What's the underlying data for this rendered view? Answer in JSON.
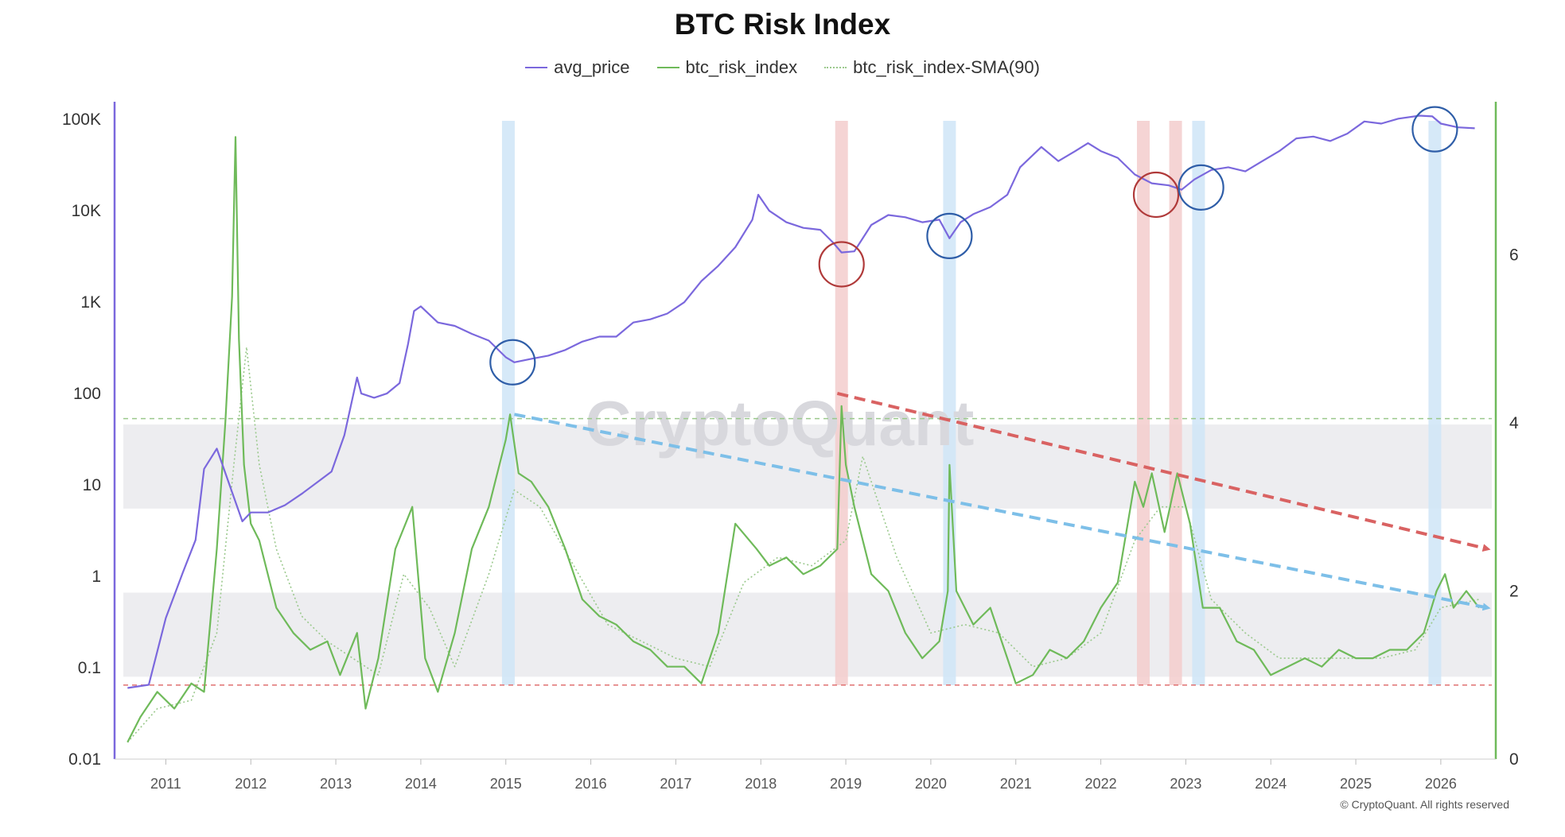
{
  "chart_data": {
    "type": "line",
    "title": "BTC Risk Index",
    "legend_position": "top-center",
    "grid": false,
    "x_range": [
      2010.5,
      2026.6
    ],
    "x_ticks": [
      "2011",
      "2012",
      "2013",
      "2014",
      "2015",
      "2016",
      "2017",
      "2018",
      "2019",
      "2020",
      "2021",
      "2022",
      "2023",
      "2024",
      "2025",
      "2026"
    ],
    "y_left": {
      "scale": "log",
      "range": [
        0.01,
        150000
      ],
      "ticks": [
        {
          "value": 0.01,
          "label": "0.01"
        },
        {
          "value": 0.1,
          "label": "0.1"
        },
        {
          "value": 1,
          "label": "1"
        },
        {
          "value": 10,
          "label": "10"
        },
        {
          "value": 100,
          "label": "100"
        },
        {
          "value": 1000,
          "label": "1K"
        },
        {
          "value": 10000,
          "label": "10K"
        },
        {
          "value": 100000,
          "label": "100K"
        }
      ]
    },
    "y_right": {
      "scale": "linear",
      "range": [
        0,
        7.8
      ],
      "ticks": [
        {
          "value": 0,
          "label": "0"
        },
        {
          "value": 2,
          "label": "2"
        },
        {
          "value": 4,
          "label": "4"
        },
        {
          "value": 6,
          "label": "6"
        }
      ]
    },
    "series": [
      {
        "name": "avg_price",
        "axis": "left",
        "color": "#7b68dd",
        "style": "solid",
        "x": [
          2010.55,
          2010.8,
          2011.0,
          2011.2,
          2011.35,
          2011.45,
          2011.6,
          2011.75,
          2011.9,
          2012.0,
          2012.2,
          2012.4,
          2012.6,
          2012.8,
          2012.95,
          2013.1,
          2013.25,
          2013.3,
          2013.45,
          2013.6,
          2013.75,
          2013.85,
          2013.92,
          2014.0,
          2014.2,
          2014.4,
          2014.6,
          2014.8,
          2015.0,
          2015.1,
          2015.3,
          2015.5,
          2015.7,
          2015.9,
          2016.1,
          2016.3,
          2016.5,
          2016.7,
          2016.9,
          2017.1,
          2017.3,
          2017.5,
          2017.7,
          2017.9,
          2017.97,
          2018.1,
          2018.3,
          2018.5,
          2018.7,
          2018.85,
          2018.95,
          2019.1,
          2019.3,
          2019.5,
          2019.7,
          2019.9,
          2020.1,
          2020.22,
          2020.35,
          2020.5,
          2020.7,
          2020.9,
          2021.05,
          2021.3,
          2021.5,
          2021.7,
          2021.85,
          2022.0,
          2022.2,
          2022.4,
          2022.6,
          2022.8,
          2022.95,
          2023.1,
          2023.3,
          2023.5,
          2023.7,
          2023.9,
          2024.1,
          2024.3,
          2024.5,
          2024.7,
          2024.9,
          2025.1,
          2025.3,
          2025.5,
          2025.75,
          2025.9,
          2026.0,
          2026.2,
          2026.4
        ],
        "y": [
          0.06,
          0.065,
          0.35,
          1.1,
          2.5,
          15,
          25,
          10,
          4,
          5,
          5,
          6,
          8,
          11,
          14,
          35,
          150,
          100,
          90,
          100,
          130,
          350,
          800,
          900,
          600,
          550,
          450,
          380,
          250,
          220,
          240,
          260,
          300,
          370,
          420,
          420,
          600,
          650,
          750,
          1000,
          1700,
          2500,
          4000,
          8000,
          15000,
          10000,
          7500,
          6500,
          6200,
          4500,
          3500,
          3600,
          7000,
          9000,
          8500,
          7500,
          8000,
          5000,
          7500,
          9200,
          11000,
          15000,
          30000,
          50000,
          35000,
          45000,
          55000,
          45000,
          38000,
          25000,
          20000,
          19000,
          17000,
          22000,
          28000,
          30000,
          27000,
          35000,
          45000,
          62000,
          65000,
          58000,
          70000,
          95000,
          90000,
          102000,
          110000,
          108000,
          90000,
          82000,
          80000
        ]
      },
      {
        "name": "btc_risk_index",
        "axis": "right",
        "color": "#6fba5a",
        "style": "solid",
        "x": [
          2010.55,
          2010.7,
          2010.9,
          2011.1,
          2011.3,
          2011.45,
          2011.6,
          2011.7,
          2011.78,
          2011.82,
          2011.86,
          2011.92,
          2012.0,
          2012.1,
          2012.3,
          2012.5,
          2012.7,
          2012.9,
          2013.05,
          2013.25,
          2013.35,
          2013.5,
          2013.7,
          2013.9,
          2014.05,
          2014.2,
          2014.4,
          2014.6,
          2014.8,
          2015.0,
          2015.05,
          2015.15,
          2015.3,
          2015.5,
          2015.7,
          2015.9,
          2016.1,
          2016.3,
          2016.5,
          2016.7,
          2016.9,
          2017.1,
          2017.3,
          2017.5,
          2017.7,
          2017.95,
          2018.1,
          2018.3,
          2018.5,
          2018.7,
          2018.9,
          2018.95,
          2019.0,
          2019.1,
          2019.3,
          2019.5,
          2019.7,
          2019.9,
          2020.1,
          2020.2,
          2020.22,
          2020.3,
          2020.5,
          2020.7,
          2020.9,
          2021.0,
          2021.2,
          2021.4,
          2021.6,
          2021.8,
          2022.0,
          2022.2,
          2022.4,
          2022.5,
          2022.6,
          2022.75,
          2022.9,
          2023.05,
          2023.2,
          2023.4,
          2023.6,
          2023.8,
          2024.0,
          2024.2,
          2024.4,
          2024.6,
          2024.8,
          2025.0,
          2025.2,
          2025.4,
          2025.6,
          2025.8,
          2025.95,
          2026.05,
          2026.15,
          2026.3,
          2026.45
        ],
        "y": [
          0.2,
          0.5,
          0.8,
          0.6,
          0.9,
          0.8,
          2.5,
          4.0,
          5.5,
          7.4,
          5.0,
          3.5,
          2.8,
          2.6,
          1.8,
          1.5,
          1.3,
          1.4,
          1.0,
          1.5,
          0.6,
          1.2,
          2.5,
          3.0,
          1.2,
          0.8,
          1.5,
          2.5,
          3.0,
          3.8,
          4.1,
          3.4,
          3.3,
          3.0,
          2.5,
          1.9,
          1.7,
          1.6,
          1.4,
          1.3,
          1.1,
          1.1,
          0.9,
          1.5,
          2.8,
          2.5,
          2.3,
          2.4,
          2.2,
          2.3,
          2.5,
          4.2,
          3.5,
          3.0,
          2.2,
          2.0,
          1.5,
          1.2,
          1.4,
          2.0,
          3.5,
          2.0,
          1.6,
          1.8,
          1.2,
          0.9,
          1.0,
          1.3,
          1.2,
          1.4,
          1.8,
          2.1,
          3.3,
          3.0,
          3.4,
          2.7,
          3.4,
          2.8,
          1.8,
          1.8,
          1.4,
          1.3,
          1.0,
          1.1,
          1.2,
          1.1,
          1.3,
          1.2,
          1.2,
          1.3,
          1.3,
          1.5,
          2.0,
          2.2,
          1.8,
          2.0,
          1.8
        ]
      },
      {
        "name": "btc_risk_index-SMA(90)",
        "axis": "right",
        "color": "#9bc98d",
        "style": "dotted",
        "x": [
          2010.55,
          2010.9,
          2011.3,
          2011.6,
          2011.8,
          2011.95,
          2012.1,
          2012.3,
          2012.6,
          2012.9,
          2013.2,
          2013.5,
          2013.8,
          2014.1,
          2014.4,
          2014.8,
          2015.1,
          2015.4,
          2015.8,
          2016.2,
          2016.6,
          2017.0,
          2017.4,
          2017.8,
          2018.2,
          2018.6,
          2019.0,
          2019.2,
          2019.6,
          2020.0,
          2020.4,
          2020.8,
          2021.2,
          2021.6,
          2022.0,
          2022.4,
          2022.7,
          2023.0,
          2023.3,
          2023.7,
          2024.1,
          2024.5,
          2024.9,
          2025.3,
          2025.7,
          2026.0,
          2026.45
        ],
        "y": [
          0.2,
          0.6,
          0.7,
          1.5,
          3.5,
          4.9,
          3.5,
          2.5,
          1.7,
          1.4,
          1.2,
          1.0,
          2.2,
          1.8,
          1.1,
          2.2,
          3.2,
          3.0,
          2.3,
          1.6,
          1.4,
          1.2,
          1.1,
          2.1,
          2.4,
          2.3,
          2.6,
          3.6,
          2.4,
          1.5,
          1.6,
          1.5,
          1.1,
          1.2,
          1.5,
          2.6,
          3.0,
          3.0,
          1.9,
          1.5,
          1.2,
          1.2,
          1.2,
          1.2,
          1.3,
          1.8,
          1.9
        ]
      }
    ],
    "reference_lines": [
      {
        "axis": "right",
        "value": 4.05,
        "color": "#9bc98d",
        "style": "dashed"
      },
      {
        "axis": "right",
        "value": 0.88,
        "color": "#e07070",
        "style": "dashed"
      }
    ],
    "bands": [
      {
        "axis": "right",
        "from": 2.98,
        "to": 3.98,
        "color": "#ededf0"
      },
      {
        "axis": "right",
        "from": 0.98,
        "to": 1.98,
        "color": "#ededf0"
      }
    ],
    "vertical_highlights": [
      {
        "x": 2015.03,
        "color": "#cfe5f7"
      },
      {
        "x": 2018.95,
        "color": "#f3cccc"
      },
      {
        "x": 2020.22,
        "color": "#cfe5f7"
      },
      {
        "x": 2022.5,
        "color": "#f3cccc"
      },
      {
        "x": 2022.88,
        "color": "#f3cccc"
      },
      {
        "x": 2023.15,
        "color": "#cfe5f7"
      },
      {
        "x": 2025.93,
        "color": "#cfe5f7"
      }
    ],
    "circles": [
      {
        "x": 2015.08,
        "value": 220,
        "color": "#2f5ea8"
      },
      {
        "x": 2018.95,
        "value": 2600,
        "color": "#b03a3a"
      },
      {
        "x": 2020.22,
        "value": 5300,
        "color": "#2f5ea8"
      },
      {
        "x": 2022.65,
        "value": 15000,
        "color": "#b03a3a"
      },
      {
        "x": 2023.18,
        "value": 18000,
        "color": "#2f5ea8"
      },
      {
        "x": 2025.93,
        "value": 78000,
        "color": "#2f5ea8"
      }
    ],
    "trend_arrows": [
      {
        "axis": "right",
        "x1": 2015.1,
        "y1": 4.1,
        "x2": 2026.55,
        "y2": 1.8,
        "color": "#7dbfe8"
      },
      {
        "axis": "right",
        "x1": 2018.9,
        "y1": 4.35,
        "x2": 2026.55,
        "y2": 2.5,
        "color": "#d96262"
      }
    ]
  },
  "watermark": "CryptoQuant",
  "copyright": "© CryptoQuant. All rights reserved"
}
